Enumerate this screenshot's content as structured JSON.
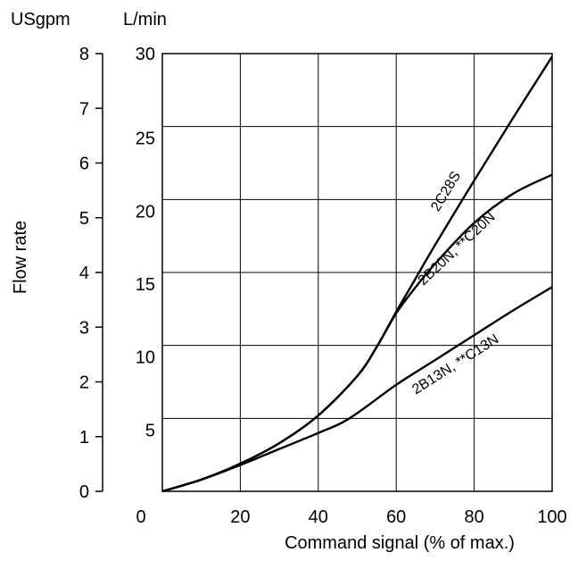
{
  "chart_data": {
    "type": "line",
    "title": "",
    "xlabel": "Command signal (% of max.)",
    "ylabel": "Flow rate",
    "x_unit": "",
    "y_units": {
      "left": "USgpm",
      "right": "L/min"
    },
    "xlim": [
      0,
      100
    ],
    "ylim_lmin": [
      0,
      30
    ],
    "ylim_usgpm": [
      0,
      8
    ],
    "x_ticks": [
      "0",
      "20",
      "40",
      "60",
      "80",
      "100"
    ],
    "y_ticks_lmin": [
      "5",
      "10",
      "15",
      "20",
      "25",
      "30"
    ],
    "y_ticks_usgpm": [
      "0",
      "1",
      "2",
      "3",
      "4",
      "5",
      "6",
      "7",
      "8"
    ],
    "grid": true,
    "series": [
      {
        "name": "2C28S",
        "x": [
          0,
          10,
          20,
          30,
          40,
          50,
          55,
          60,
          65,
          70,
          80,
          90,
          100
        ],
        "y": [
          0,
          0.8,
          1.9,
          3.3,
          5.2,
          7.9,
          9.9,
          12.3,
          14.6,
          16.9,
          21.3,
          25.6,
          29.8
        ]
      },
      {
        "name": "2B20N, **C20N",
        "x": [
          0,
          10,
          20,
          30,
          40,
          50,
          55,
          60,
          65,
          70,
          80,
          90,
          100
        ],
        "y": [
          0,
          0.8,
          1.9,
          3.3,
          5.2,
          7.9,
          9.9,
          12.2,
          14.0,
          15.6,
          18.4,
          20.4,
          21.7
        ]
      },
      {
        "name": "2B13N, **C13N",
        "x": [
          0,
          10,
          20,
          30,
          40,
          48,
          60,
          70,
          80,
          90,
          100
        ],
        "y": [
          0,
          0.8,
          1.8,
          2.9,
          4.0,
          5.0,
          7.3,
          9.0,
          10.7,
          12.4,
          14.0
        ]
      }
    ]
  }
}
